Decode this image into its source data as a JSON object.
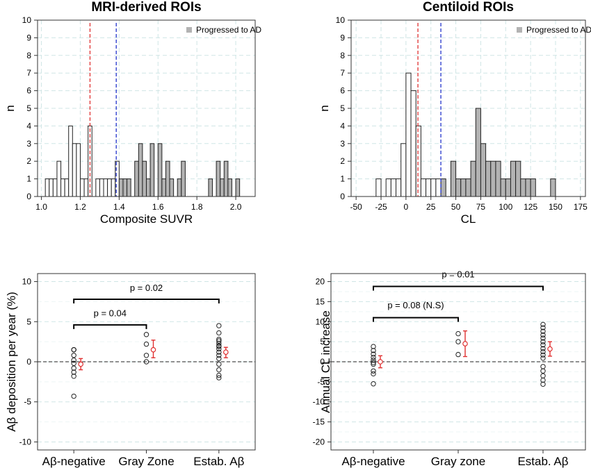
{
  "chart_data": [
    {
      "type": "histogram",
      "title": "MRI-derived ROIs",
      "xlabel": "Composite SUVR",
      "ylabel": "n",
      "xlim": [
        0.98,
        2.1
      ],
      "ylim": [
        0,
        10
      ],
      "xticks": [
        "1.0",
        "1.2",
        "1.4",
        "1.6",
        "1.8",
        "2.0"
      ],
      "yticks": [
        "0",
        "1",
        "2",
        "3",
        "4",
        "5",
        "6",
        "7",
        "8",
        "9",
        "10"
      ],
      "bin_width": 0.02,
      "grid": true,
      "legend": {
        "position": "top-right",
        "label": "Progressed to AD"
      },
      "thresholds": [
        {
          "value": 1.25,
          "color": "#e03030"
        },
        {
          "value": 1.385,
          "color": "#2233cc"
        }
      ],
      "series": [
        {
          "name": "",
          "style": "open",
          "bin_starts": [
            1.02,
            1.04,
            1.06,
            1.08,
            1.1,
            1.12,
            1.14,
            1.16,
            1.18,
            1.2,
            1.22,
            1.24,
            1.28,
            1.3,
            1.32,
            1.34,
            1.36,
            1.38
          ],
          "counts": [
            1,
            1,
            1,
            2,
            1,
            1,
            4,
            3,
            3,
            1,
            1,
            4,
            1,
            1,
            1,
            1,
            1,
            2
          ]
        },
        {
          "name": "Progressed to AD",
          "style": "filled",
          "bin_starts": [
            1.4,
            1.42,
            1.44,
            1.48,
            1.5,
            1.52,
            1.54,
            1.56,
            1.6,
            1.62,
            1.64,
            1.66,
            1.7,
            1.72,
            1.86,
            1.9,
            1.92,
            1.94,
            1.96,
            2.0
          ],
          "counts": [
            1,
            1,
            1,
            2,
            3,
            2,
            1,
            3,
            3,
            1,
            2,
            1,
            1,
            2,
            1,
            2,
            1,
            2,
            1,
            1
          ]
        }
      ],
      "fill_color": "#b3b3b3"
    },
    {
      "type": "histogram",
      "title": "Centiloid ROIs",
      "xlabel": "CL",
      "ylabel": "n",
      "xlim": [
        -55,
        180
      ],
      "ylim": [
        0,
        10
      ],
      "xticks": [
        "-50",
        "-25",
        "0",
        "25",
        "50",
        "75",
        "100",
        "125",
        "150",
        "175"
      ],
      "yticks": [
        "0",
        "1",
        "2",
        "3",
        "4",
        "5",
        "6",
        "7",
        "8",
        "9",
        "10"
      ],
      "bin_width": 5,
      "grid": true,
      "legend": {
        "position": "top-right",
        "label": "Progressed to AD"
      },
      "thresholds": [
        {
          "value": 12,
          "color": "#e03030"
        },
        {
          "value": 35,
          "color": "#2233cc"
        }
      ],
      "series": [
        {
          "name": "",
          "style": "open",
          "bin_starts": [
            -30,
            -20,
            -15,
            -10,
            -5,
            0,
            5,
            10,
            15,
            20,
            25,
            30
          ],
          "counts": [
            1,
            1,
            1,
            1,
            3,
            7,
            6,
            4,
            1,
            1,
            1,
            1
          ]
        },
        {
          "name": "Progressed to AD",
          "style": "filled",
          "bin_starts": [
            35,
            45,
            50,
            55,
            60,
            65,
            70,
            75,
            80,
            85,
            90,
            95,
            100,
            105,
            110,
            115,
            120,
            125,
            145
          ],
          "counts": [
            1,
            2,
            1,
            1,
            1,
            2,
            5,
            3,
            2,
            2,
            2,
            1,
            1,
            2,
            2,
            1,
            1,
            1,
            1
          ]
        }
      ],
      "fill_color": "#b3b3b3"
    },
    {
      "type": "scatter",
      "title": "",
      "xlabel": "",
      "ylabel": "Aβ deposition per year (%)",
      "ylim": [
        -11,
        11
      ],
      "yticks": [
        "-10",
        "-5",
        "0",
        "5",
        "10"
      ],
      "categories": [
        "Aβ-negative",
        "Gray Zone",
        "Estab. Aβ"
      ],
      "grid": true,
      "reference_line": 0,
      "points": [
        [
          1.5,
          1.5,
          1.5,
          0.8,
          0.2,
          -0.2,
          -0.8,
          -1.3,
          -1.8,
          -4.3
        ],
        [
          3.4,
          2.2,
          0.8,
          0.0
        ],
        [
          4.5,
          3.6,
          2.8,
          2.6,
          2.3,
          2.0,
          1.9,
          1.6,
          1.2,
          0.8,
          0.4,
          -0.3,
          -1.0,
          -1.7,
          -2.0
        ]
      ],
      "means": [
        -0.3,
        1.5,
        1.2
      ],
      "error_low": [
        -1.0,
        0.5,
        0.5
      ],
      "error_high": [
        0.4,
        2.7,
        1.8
      ],
      "mean_color": "#e03030",
      "annotations": [
        {
          "label": "p = 0.04",
          "from": 0,
          "to": 1,
          "y": 4.6,
          "text_y": 6.0
        },
        {
          "label": "p = 0.02",
          "from": 0,
          "to": 2,
          "y": 7.8,
          "text_y": 9.2
        }
      ]
    },
    {
      "type": "scatter",
      "title": "",
      "xlabel": "",
      "ylabel": "Annual CL increase",
      "ylim": [
        -22,
        22
      ],
      "yticks": [
        "-20",
        "-15",
        "-10",
        "-5",
        "0",
        "5",
        "10",
        "15",
        "20"
      ],
      "categories": [
        "Aβ-negative",
        "Gray zone",
        "Estab. Aβ"
      ],
      "grid": true,
      "reference_line": 0,
      "points": [
        [
          3.8,
          2.8,
          1.9,
          1.1,
          0.4,
          -0.2,
          -0.6,
          -2.3,
          -3.0,
          -5.5
        ],
        [
          7.0,
          5.0,
          1.8
        ],
        [
          9.3,
          8.5,
          7.6,
          6.7,
          5.9,
          5.0,
          4.2,
          3.3,
          2.5,
          1.7,
          0.9,
          -1.2,
          -2.3,
          -3.5,
          -4.6,
          -5.6
        ]
      ],
      "means": [
        0.0,
        4.5,
        3.2
      ],
      "error_low": [
        -1.5,
        1.3,
        1.4
      ],
      "error_high": [
        1.5,
        7.7,
        5.0
      ],
      "mean_color": "#e03030",
      "annotations": [
        {
          "label": "p = 0.08 (N.S)",
          "from": 0,
          "to": 1,
          "y": 11.0,
          "text_y": 14.0
        },
        {
          "label": "p = 0.01",
          "from": 0,
          "to": 2,
          "y": 18.8,
          "text_y": 21.7
        }
      ]
    }
  ]
}
